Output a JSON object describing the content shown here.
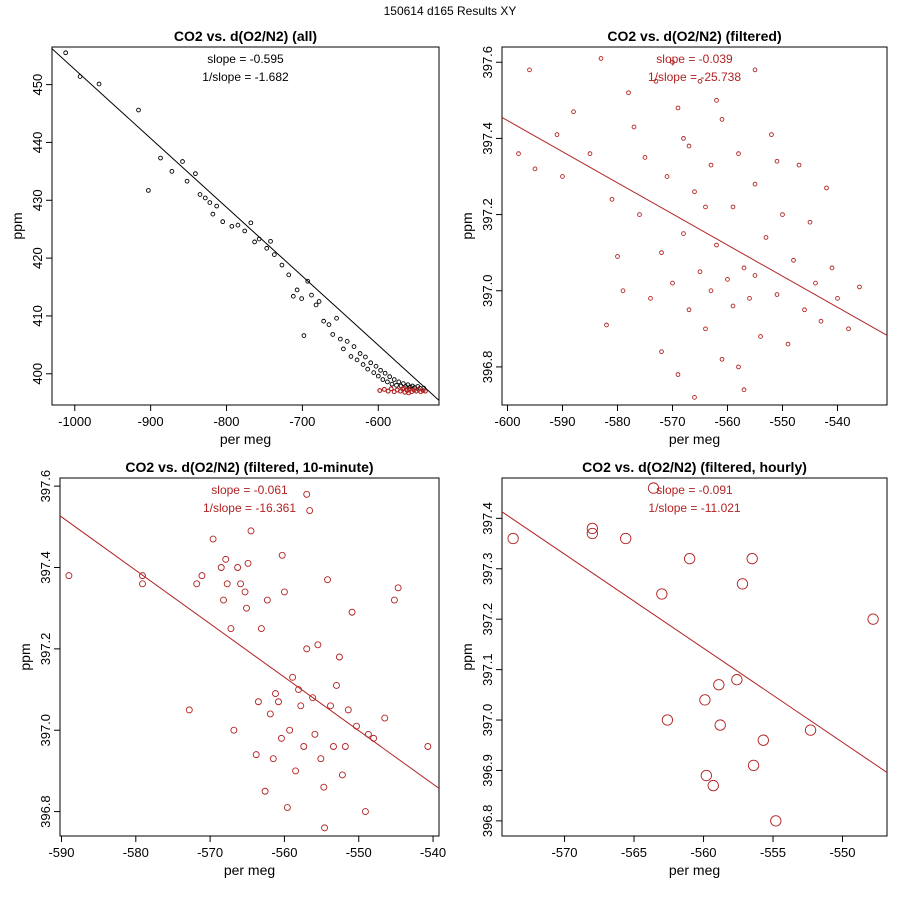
{
  "figure_title": "150614   d165   Results XY",
  "chart_data": [
    {
      "type": "scatter",
      "title": "CO2 vs. d(O2/N2) (all)",
      "xlabel": "per meg",
      "ylabel": "ppm",
      "xlim": [
        -1030,
        -520
      ],
      "ylim": [
        394.6,
        456.5
      ],
      "xticks": [
        -1000,
        -900,
        -800,
        -700,
        -600
      ],
      "yticks": [
        400,
        410,
        420,
        430,
        440,
        450
      ],
      "color": "#000000",
      "highlight_color": "#b22222",
      "marker_r": 1.9,
      "annotations": [
        "slope = -0.595",
        "1/slope = -1.682"
      ],
      "annotation_color": "#000000",
      "fit": {
        "slope": -0.595,
        "x1": -1030,
        "x2": -520,
        "y1": 456.2,
        "y2": 395.4
      },
      "points": [
        {
          "x": -1012,
          "y": 455.5
        },
        {
          "x": -993,
          "y": 451.4
        },
        {
          "x": -968,
          "y": 450.1
        },
        {
          "x": -916,
          "y": 445.6
        },
        {
          "x": -903,
          "y": 431.7
        },
        {
          "x": -887,
          "y": 437.3
        },
        {
          "x": -872,
          "y": 435.0
        },
        {
          "x": -858,
          "y": 436.7
        },
        {
          "x": -852,
          "y": 433.3
        },
        {
          "x": -841,
          "y": 434.6
        },
        {
          "x": -835,
          "y": 431.0
        },
        {
          "x": -828,
          "y": 430.4
        },
        {
          "x": -822,
          "y": 429.6
        },
        {
          "x": -818,
          "y": 427.6
        },
        {
          "x": -813,
          "y": 429.0
        },
        {
          "x": -805,
          "y": 426.3
        },
        {
          "x": -793,
          "y": 425.5
        },
        {
          "x": -785,
          "y": 425.7
        },
        {
          "x": -776,
          "y": 424.7
        },
        {
          "x": -768,
          "y": 426.1
        },
        {
          "x": -763,
          "y": 422.8
        },
        {
          "x": -757,
          "y": 423.3
        },
        {
          "x": -747,
          "y": 421.7
        },
        {
          "x": -742,
          "y": 422.9
        },
        {
          "x": -737,
          "y": 420.6
        },
        {
          "x": -727,
          "y": 418.8
        },
        {
          "x": -718,
          "y": 417.1
        },
        {
          "x": -712,
          "y": 413.4
        },
        {
          "x": -707,
          "y": 414.5
        },
        {
          "x": -701,
          "y": 413.0
        },
        {
          "x": -698,
          "y": 406.6
        },
        {
          "x": -693,
          "y": 416.0
        },
        {
          "x": -688,
          "y": 413.6
        },
        {
          "x": -682,
          "y": 411.9
        },
        {
          "x": -678,
          "y": 412.5
        },
        {
          "x": -672,
          "y": 409.1
        },
        {
          "x": -665,
          "y": 408.5
        },
        {
          "x": -660,
          "y": 406.8
        },
        {
          "x": -655,
          "y": 409.6
        },
        {
          "x": -650,
          "y": 406.0
        },
        {
          "x": -646,
          "y": 404.3
        },
        {
          "x": -641,
          "y": 405.6
        },
        {
          "x": -636,
          "y": 403.0
        },
        {
          "x": -632,
          "y": 404.7
        },
        {
          "x": -628,
          "y": 402.4
        },
        {
          "x": -624,
          "y": 403.5
        },
        {
          "x": -620,
          "y": 401.6
        },
        {
          "x": -617,
          "y": 402.9
        },
        {
          "x": -614,
          "y": 400.8
        },
        {
          "x": -610,
          "y": 401.9
        },
        {
          "x": -606,
          "y": 400.2
        },
        {
          "x": -603,
          "y": 401.3
        },
        {
          "x": -600,
          "y": 399.6
        },
        {
          "x": -597,
          "y": 400.6
        },
        {
          "x": -594,
          "y": 399.0
        },
        {
          "x": -591,
          "y": 400.1
        },
        {
          "x": -588,
          "y": 398.6
        },
        {
          "x": -585,
          "y": 399.5
        },
        {
          "x": -582,
          "y": 398.2
        },
        {
          "x": -579,
          "y": 399.0
        },
        {
          "x": -576,
          "y": 398.0
        },
        {
          "x": -573,
          "y": 398.6
        },
        {
          "x": -570,
          "y": 397.9
        },
        {
          "x": -567,
          "y": 398.3
        },
        {
          "x": -564,
          "y": 397.8
        },
        {
          "x": -561,
          "y": 398.1
        },
        {
          "x": -558,
          "y": 397.7
        },
        {
          "x": -555,
          "y": 397.9
        },
        {
          "x": -552,
          "y": 397.6
        },
        {
          "x": -548,
          "y": 397.8
        },
        {
          "x": -545,
          "y": 397.5
        },
        {
          "x": -540,
          "y": 397.5
        }
      ],
      "highlight_points": [
        {
          "x": -598,
          "y": 397.1
        },
        {
          "x": -592,
          "y": 397.3
        },
        {
          "x": -587,
          "y": 397.0
        },
        {
          "x": -583,
          "y": 397.4
        },
        {
          "x": -579,
          "y": 396.9
        },
        {
          "x": -575,
          "y": 397.2
        },
        {
          "x": -571,
          "y": 397.0
        },
        {
          "x": -568,
          "y": 397.4
        },
        {
          "x": -565,
          "y": 396.8
        },
        {
          "x": -562,
          "y": 397.1
        },
        {
          "x": -559,
          "y": 397.3
        },
        {
          "x": -556,
          "y": 396.9
        },
        {
          "x": -553,
          "y": 397.2
        },
        {
          "x": -550,
          "y": 397.0
        },
        {
          "x": -547,
          "y": 397.3
        },
        {
          "x": -544,
          "y": 396.9
        },
        {
          "x": -541,
          "y": 397.1
        },
        {
          "x": -538,
          "y": 397.0
        },
        {
          "x": -560,
          "y": 396.7
        },
        {
          "x": -566,
          "y": 397.5
        }
      ]
    },
    {
      "type": "scatter",
      "title": "CO2 vs. d(O2/N2) (filtered)",
      "xlabel": "per meg",
      "ylabel": "ppm",
      "xlim": [
        -601,
        -531
      ],
      "ylim": [
        396.7,
        397.64
      ],
      "xticks": [
        -600,
        -590,
        -580,
        -570,
        -560,
        -550,
        -540
      ],
      "yticks": [
        396.8,
        397.0,
        397.2,
        397.4,
        397.6
      ],
      "color": "#b22222",
      "marker_r": 1.9,
      "annotations": [
        "slope = -0.039",
        "1/slope = -25.738"
      ],
      "annotation_color": "#b22222",
      "fit": {
        "slope": -0.039,
        "x1": -601,
        "x2": -531,
        "y1": 397.455,
        "y2": 396.883
      },
      "points": [
        {
          "x": -598,
          "y": 397.36
        },
        {
          "x": -596,
          "y": 397.58
        },
        {
          "x": -595,
          "y": 397.32
        },
        {
          "x": -591,
          "y": 397.41
        },
        {
          "x": -590,
          "y": 397.3
        },
        {
          "x": -588,
          "y": 397.47
        },
        {
          "x": -585,
          "y": 397.36
        },
        {
          "x": -583,
          "y": 397.61
        },
        {
          "x": -582,
          "y": 396.91
        },
        {
          "x": -581,
          "y": 397.24
        },
        {
          "x": -580,
          "y": 397.09
        },
        {
          "x": -579,
          "y": 397.0
        },
        {
          "x": -578,
          "y": 397.52
        },
        {
          "x": -577,
          "y": 397.43
        },
        {
          "x": -576,
          "y": 397.2
        },
        {
          "x": -575,
          "y": 397.35
        },
        {
          "x": -574,
          "y": 396.98
        },
        {
          "x": -573,
          "y": 397.55
        },
        {
          "x": -572,
          "y": 397.1
        },
        {
          "x": -572,
          "y": 396.84
        },
        {
          "x": -571,
          "y": 397.3
        },
        {
          "x": -570,
          "y": 397.02
        },
        {
          "x": -569,
          "y": 397.48
        },
        {
          "x": -569,
          "y": 396.78
        },
        {
          "x": -568,
          "y": 397.15
        },
        {
          "x": -567,
          "y": 397.38
        },
        {
          "x": -567,
          "y": 396.95
        },
        {
          "x": -566,
          "y": 397.26
        },
        {
          "x": -565,
          "y": 397.05
        },
        {
          "x": -565,
          "y": 397.55
        },
        {
          "x": -564,
          "y": 396.9
        },
        {
          "x": -563,
          "y": 397.33
        },
        {
          "x": -563,
          "y": 397.0
        },
        {
          "x": -562,
          "y": 397.12
        },
        {
          "x": -561,
          "y": 396.82
        },
        {
          "x": -561,
          "y": 397.45
        },
        {
          "x": -560,
          "y": 397.03
        },
        {
          "x": -559,
          "y": 397.22
        },
        {
          "x": -559,
          "y": 396.96
        },
        {
          "x": -558,
          "y": 397.36
        },
        {
          "x": -557,
          "y": 397.06
        },
        {
          "x": -557,
          "y": 396.74
        },
        {
          "x": -556,
          "y": 396.98
        },
        {
          "x": -555,
          "y": 397.28
        },
        {
          "x": -555,
          "y": 397.04
        },
        {
          "x": -554,
          "y": 396.88
        },
        {
          "x": -553,
          "y": 397.14
        },
        {
          "x": -552,
          "y": 397.41
        },
        {
          "x": -551,
          "y": 396.99
        },
        {
          "x": -550,
          "y": 397.2
        },
        {
          "x": -549,
          "y": 396.86
        },
        {
          "x": -548,
          "y": 397.08
        },
        {
          "x": -547,
          "y": 397.33
        },
        {
          "x": -546,
          "y": 396.95
        },
        {
          "x": -545,
          "y": 397.18
        },
        {
          "x": -544,
          "y": 397.02
        },
        {
          "x": -543,
          "y": 396.92
        },
        {
          "x": -542,
          "y": 397.27
        },
        {
          "x": -541,
          "y": 397.06
        },
        {
          "x": -540,
          "y": 396.98
        },
        {
          "x": -538,
          "y": 396.9
        },
        {
          "x": -536,
          "y": 397.01
        },
        {
          "x": -570,
          "y": 397.6
        },
        {
          "x": -566,
          "y": 396.72
        },
        {
          "x": -562,
          "y": 397.5
        },
        {
          "x": -558,
          "y": 396.8
        },
        {
          "x": -555,
          "y": 397.58
        },
        {
          "x": -551,
          "y": 397.34
        },
        {
          "x": -568,
          "y": 397.4
        },
        {
          "x": -564,
          "y": 397.22
        }
      ]
    },
    {
      "type": "scatter",
      "title": "CO2 vs. d(O2/N2) (filtered, 10-minute)",
      "xlabel": "per meg",
      "ylabel": "ppm",
      "xlim": [
        -590.2,
        -539.2
      ],
      "ylim": [
        396.74,
        397.62
      ],
      "xticks": [
        -590,
        -580,
        -570,
        -560,
        -550,
        -540
      ],
      "yticks": [
        396.8,
        397.0,
        397.2,
        397.4,
        397.6
      ],
      "color": "#b22222",
      "marker_r": 3.0,
      "annotations": [
        "slope = -0.061",
        "1/slope = -16.361"
      ],
      "annotation_color": "#b22222",
      "fit": {
        "slope": -0.061,
        "x1": -590.2,
        "x2": -539.2,
        "y1": 397.527,
        "y2": 396.857
      },
      "points": [
        {
          "x": -589.0,
          "y": 397.38
        },
        {
          "x": -579.1,
          "y": 397.38
        },
        {
          "x": -579.1,
          "y": 397.36
        },
        {
          "x": -572.8,
          "y": 397.05
        },
        {
          "x": -571.8,
          "y": 397.36
        },
        {
          "x": -571.1,
          "y": 397.38
        },
        {
          "x": -569.6,
          "y": 397.47
        },
        {
          "x": -568.5,
          "y": 397.4
        },
        {
          "x": -568.2,
          "y": 397.32
        },
        {
          "x": -567.7,
          "y": 397.36
        },
        {
          "x": -567.2,
          "y": 397.25
        },
        {
          "x": -566.8,
          "y": 397.0
        },
        {
          "x": -566.3,
          "y": 397.4
        },
        {
          "x": -565.9,
          "y": 397.36
        },
        {
          "x": -565.3,
          "y": 397.34
        },
        {
          "x": -564.9,
          "y": 397.41
        },
        {
          "x": -564.5,
          "y": 397.49
        },
        {
          "x": -563.8,
          "y": 396.94
        },
        {
          "x": -563.5,
          "y": 397.07
        },
        {
          "x": -563.1,
          "y": 397.25
        },
        {
          "x": -562.6,
          "y": 396.85
        },
        {
          "x": -562.3,
          "y": 397.32
        },
        {
          "x": -561.9,
          "y": 397.04
        },
        {
          "x": -561.5,
          "y": 396.93
        },
        {
          "x": -561.2,
          "y": 397.09
        },
        {
          "x": -560.8,
          "y": 397.07
        },
        {
          "x": -560.4,
          "y": 396.98
        },
        {
          "x": -560.0,
          "y": 397.34
        },
        {
          "x": -559.6,
          "y": 396.81
        },
        {
          "x": -559.3,
          "y": 397.0
        },
        {
          "x": -558.9,
          "y": 397.13
        },
        {
          "x": -558.5,
          "y": 396.9
        },
        {
          "x": -558.1,
          "y": 397.1
        },
        {
          "x": -557.8,
          "y": 397.06
        },
        {
          "x": -557.4,
          "y": 396.96
        },
        {
          "x": -557.0,
          "y": 397.2
        },
        {
          "x": -556.6,
          "y": 397.54
        },
        {
          "x": -556.2,
          "y": 397.08
        },
        {
          "x": -555.9,
          "y": 396.99
        },
        {
          "x": -555.5,
          "y": 397.21
        },
        {
          "x": -555.1,
          "y": 396.93
        },
        {
          "x": -554.7,
          "y": 396.86
        },
        {
          "x": -554.2,
          "y": 397.37
        },
        {
          "x": -553.8,
          "y": 397.06
        },
        {
          "x": -553.4,
          "y": 396.96
        },
        {
          "x": -553.0,
          "y": 397.11
        },
        {
          "x": -552.6,
          "y": 397.18
        },
        {
          "x": -552.2,
          "y": 396.89
        },
        {
          "x": -551.8,
          "y": 396.96
        },
        {
          "x": -551.4,
          "y": 397.05
        },
        {
          "x": -550.9,
          "y": 397.29
        },
        {
          "x": -550.3,
          "y": 397.01
        },
        {
          "x": -549.1,
          "y": 396.8
        },
        {
          "x": -548.7,
          "y": 396.99
        },
        {
          "x": -548.0,
          "y": 396.98
        },
        {
          "x": -546.5,
          "y": 397.03
        },
        {
          "x": -545.2,
          "y": 397.32
        },
        {
          "x": -544.7,
          "y": 397.35
        },
        {
          "x": -540.7,
          "y": 396.96
        },
        {
          "x": -565.1,
          "y": 397.3
        },
        {
          "x": -557.0,
          "y": 397.58
        },
        {
          "x": -554.6,
          "y": 396.76
        },
        {
          "x": -560.3,
          "y": 397.43
        },
        {
          "x": -567.9,
          "y": 397.42
        }
      ]
    },
    {
      "type": "scatter",
      "title": "CO2 vs. d(O2/N2) (filtered, hourly)",
      "xlabel": "per meg",
      "ylabel": "ppm",
      "xlim": [
        -574.5,
        -546.8
      ],
      "ylim": [
        396.77,
        397.48
      ],
      "xticks": [
        -570,
        -565,
        -560,
        -555,
        -550
      ],
      "yticks": [
        396.8,
        396.9,
        397.0,
        397.1,
        397.2,
        397.3,
        397.4
      ],
      "color": "#b22222",
      "marker_r": 5.2,
      "annotations": [
        "slope = -0.091",
        "1/slope = -11.021"
      ],
      "annotation_color": "#b22222",
      "fit": {
        "slope": -0.091,
        "x1": -574.5,
        "x2": -546.8,
        "y1": 397.413,
        "y2": 396.896
      },
      "points": [
        {
          "x": -573.7,
          "y": 397.36
        },
        {
          "x": -568.0,
          "y": 397.38
        },
        {
          "x": -568.0,
          "y": 397.37
        },
        {
          "x": -565.6,
          "y": 397.36
        },
        {
          "x": -563.0,
          "y": 397.25
        },
        {
          "x": -562.6,
          "y": 397.0
        },
        {
          "x": -561.0,
          "y": 397.32
        },
        {
          "x": -559.9,
          "y": 397.04
        },
        {
          "x": -559.8,
          "y": 396.89
        },
        {
          "x": -559.3,
          "y": 396.87
        },
        {
          "x": -558.9,
          "y": 397.07
        },
        {
          "x": -558.8,
          "y": 396.99
        },
        {
          "x": -557.6,
          "y": 397.08
        },
        {
          "x": -557.2,
          "y": 397.27
        },
        {
          "x": -556.5,
          "y": 397.32
        },
        {
          "x": -556.4,
          "y": 396.91
        },
        {
          "x": -555.7,
          "y": 396.96
        },
        {
          "x": -554.8,
          "y": 396.8
        },
        {
          "x": -552.3,
          "y": 396.98
        },
        {
          "x": -547.8,
          "y": 397.2
        },
        {
          "x": -563.6,
          "y": 397.46
        }
      ]
    }
  ]
}
